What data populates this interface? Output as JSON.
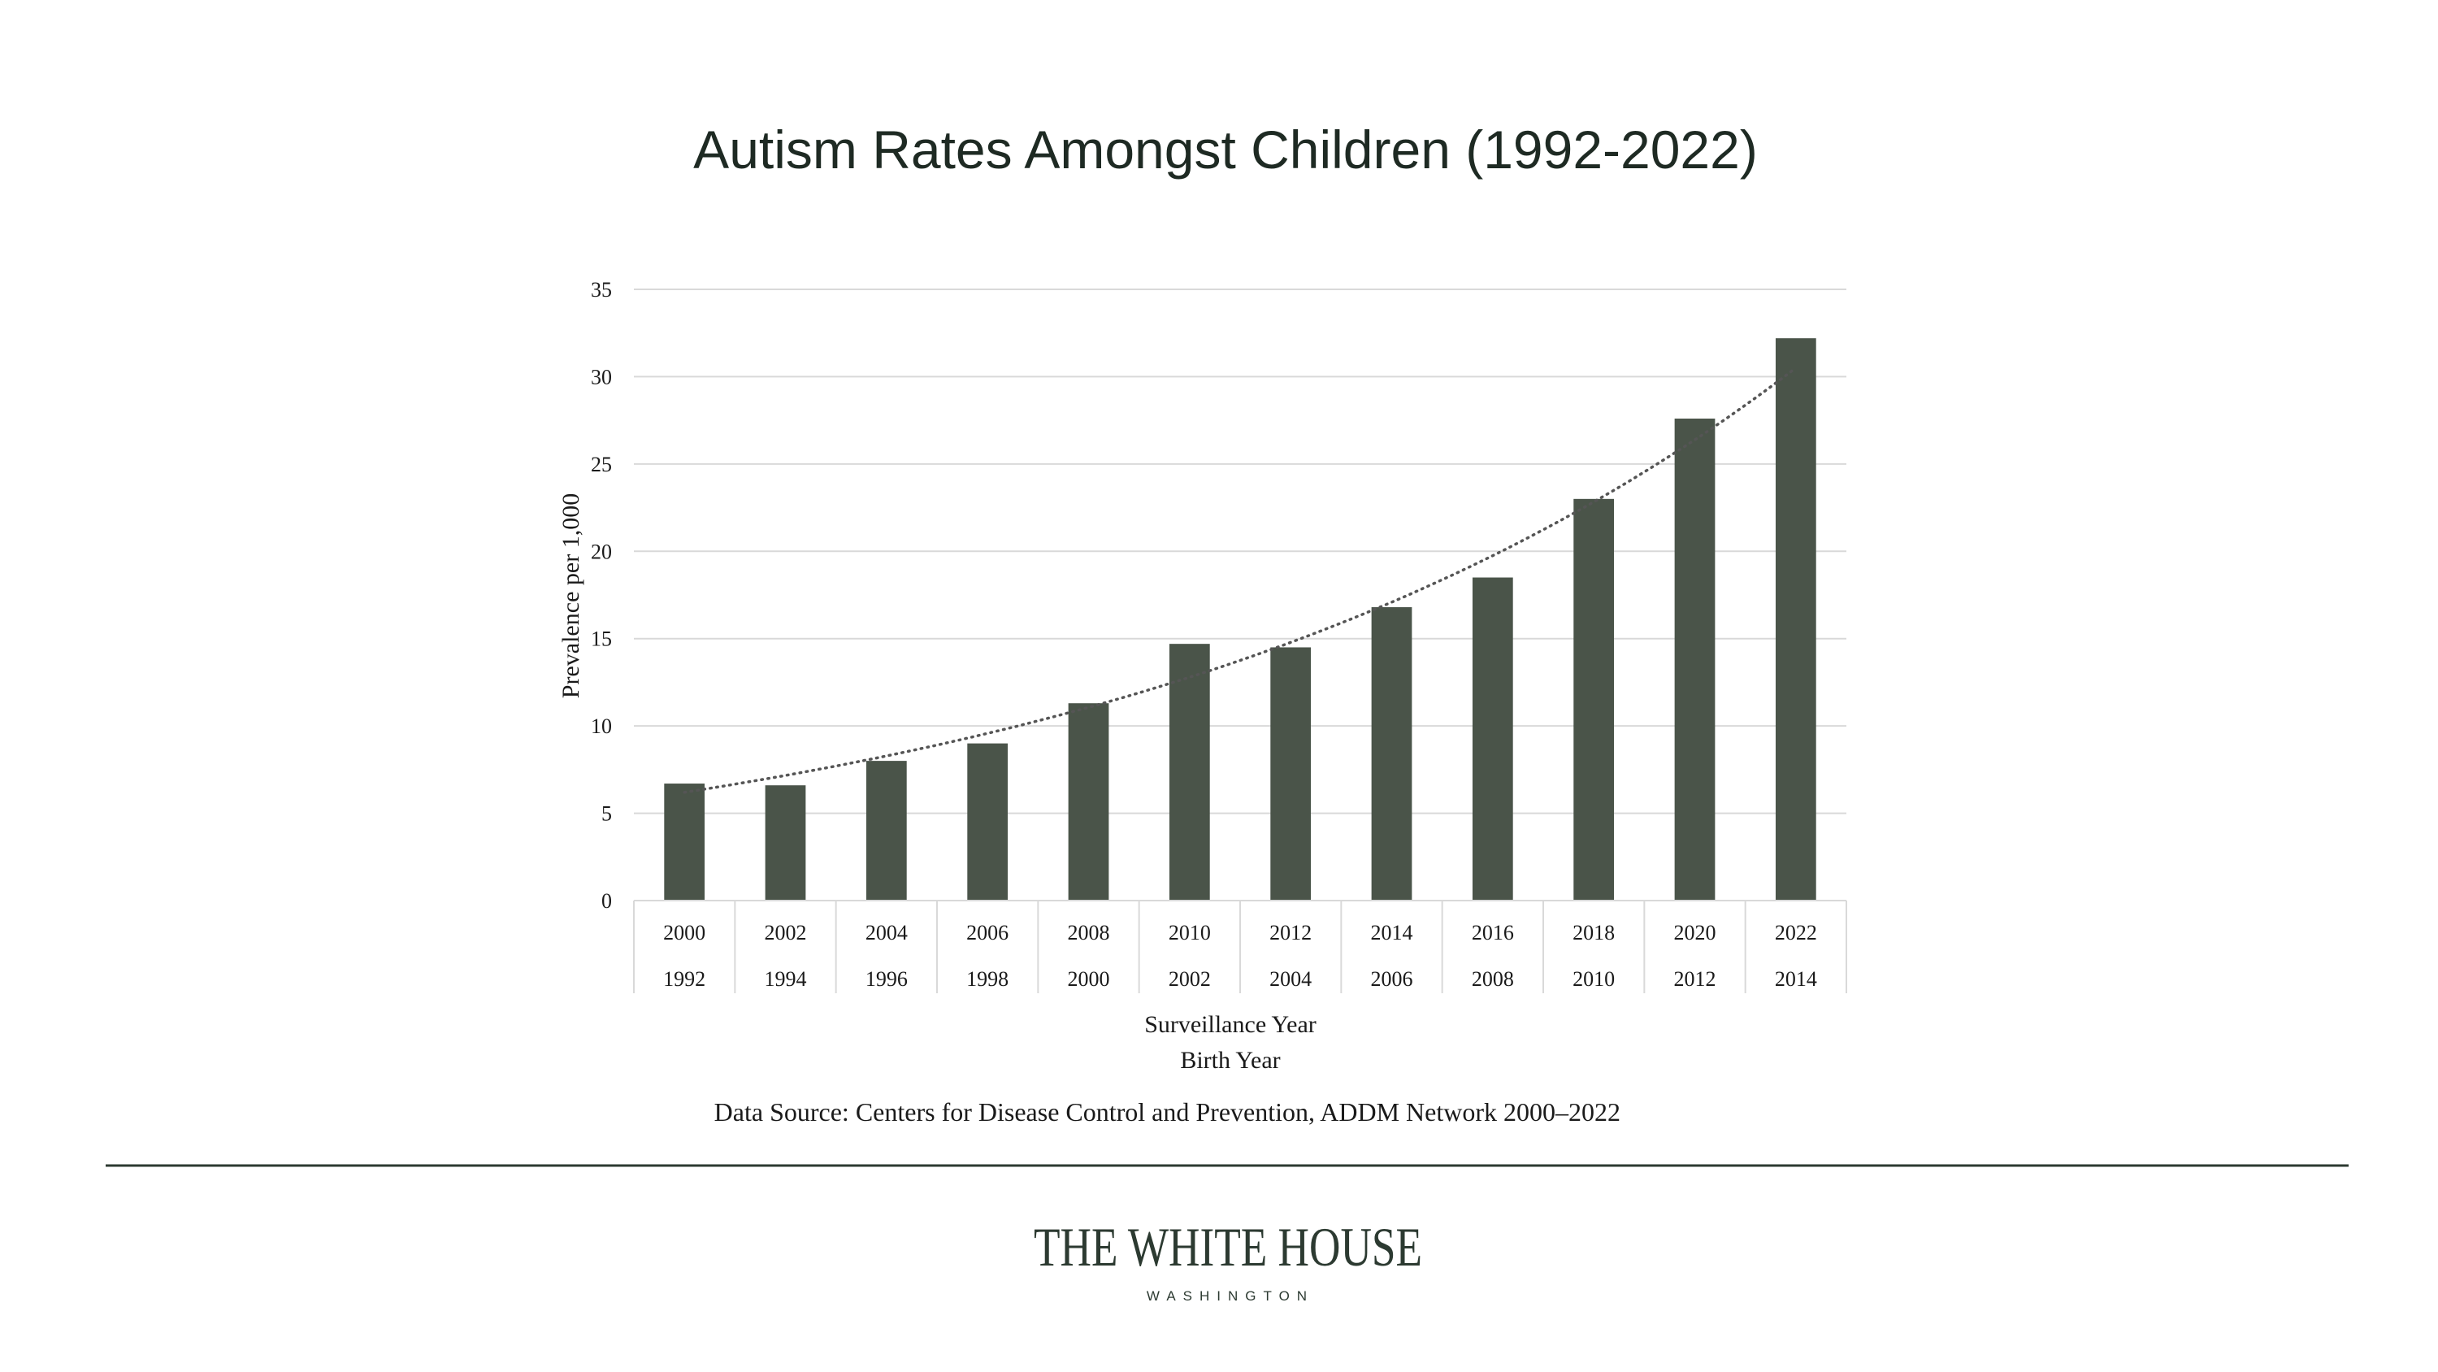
{
  "chart_data": {
    "type": "bar",
    "title": "Autism Rates Amongst Children (1992-2022)",
    "ylabel": "Prevalence per 1,000",
    "xlabel": "Surveillance Year",
    "xlabel_secondary": "Birth Year",
    "categories": [
      "2000",
      "2002",
      "2004",
      "2006",
      "2008",
      "2010",
      "2012",
      "2014",
      "2016",
      "2018",
      "2020",
      "2022"
    ],
    "categories_secondary": [
      "1992",
      "1994",
      "1996",
      "1998",
      "2000",
      "2002",
      "2004",
      "2006",
      "2008",
      "2010",
      "2012",
      "2014"
    ],
    "values": [
      6.7,
      6.6,
      8.0,
      9.0,
      11.3,
      14.7,
      14.5,
      16.8,
      18.5,
      23.0,
      27.6,
      32.2
    ],
    "trendline": {
      "type": "exponential",
      "start_value": 6.2,
      "end_value": 30.5,
      "style": "dotted"
    },
    "ylim": [
      0,
      35
    ],
    "yticks": [
      0,
      5,
      10,
      15,
      20,
      25,
      30,
      35
    ],
    "grid": true,
    "bar_color": "#4a5449",
    "trend_color": "#555555",
    "grid_color": "#d9d9d9"
  },
  "source_note": "Data Source: Centers for Disease Control and Prevention, ADDM Network 2000–2022",
  "brand": {
    "name": "THE WHITE HOUSE",
    "subtitle": "WASHINGTON",
    "color": "#2c3a31"
  },
  "divider_color": "#2c3a31"
}
